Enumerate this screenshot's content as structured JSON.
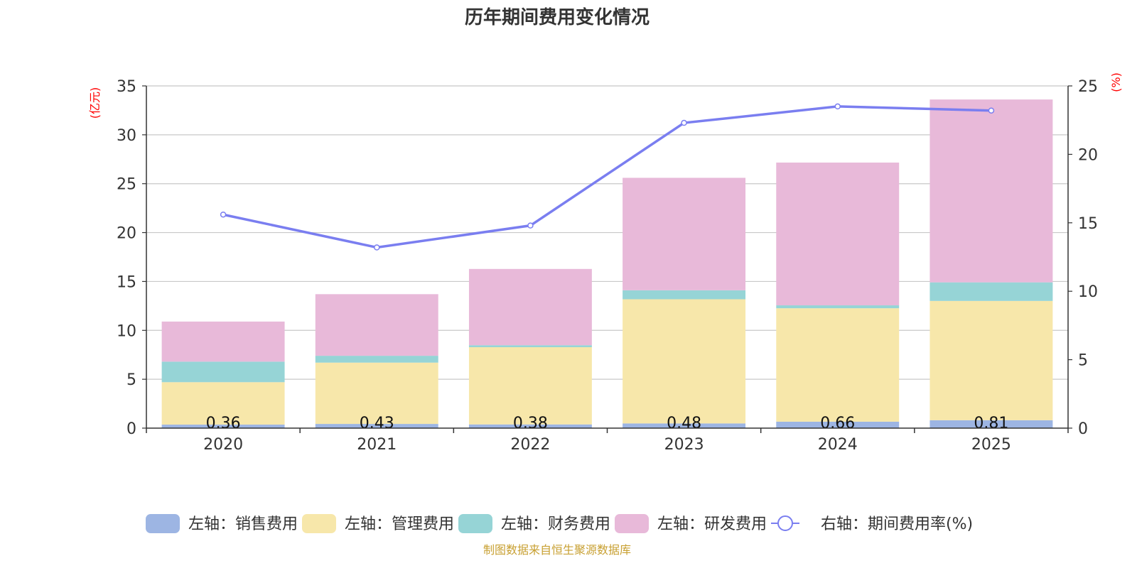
{
  "chart_data": {
    "type": "bar",
    "title": "历年期间费用变化情况",
    "left_axis_unit": "(亿元)",
    "right_axis_unit": "(%)",
    "categories": [
      "2020",
      "2021",
      "2022",
      "2023",
      "2024",
      "2025"
    ],
    "left_ylim": [
      0,
      35
    ],
    "left_ticks": [
      0,
      5,
      10,
      15,
      20,
      25,
      30,
      35
    ],
    "right_ylim": [
      0,
      25
    ],
    "right_ticks": [
      0,
      5,
      10,
      15,
      20,
      25
    ],
    "grid": true,
    "series": [
      {
        "name": "左轴：销售费用",
        "axis": "left",
        "type": "bar",
        "color": "#9db5e3",
        "values": [
          0.36,
          0.43,
          0.38,
          0.48,
          0.66,
          0.81
        ],
        "labels": [
          "0.36",
          "0.43",
          "0.38",
          "0.48",
          "0.66",
          "0.81"
        ]
      },
      {
        "name": "左轴：管理费用",
        "axis": "left",
        "type": "bar",
        "color": "#f7e7aa",
        "values": [
          4.34,
          6.27,
          7.9,
          12.7,
          11.6,
          12.2
        ]
      },
      {
        "name": "左轴：财务费用",
        "axis": "left",
        "type": "bar",
        "color": "#96d4d6",
        "values": [
          2.1,
          0.7,
          0.2,
          0.92,
          0.3,
          1.9
        ]
      },
      {
        "name": "左轴：研发费用",
        "axis": "left",
        "type": "bar",
        "color": "#e8b9d9",
        "values": [
          4.1,
          6.3,
          7.8,
          11.5,
          14.6,
          18.7
        ]
      },
      {
        "name": "右轴：期间费用率(%)",
        "axis": "right",
        "type": "line",
        "color": "#7a7ef0",
        "values": [
          15.6,
          13.2,
          14.8,
          22.3,
          23.5,
          23.2
        ]
      }
    ],
    "legend_position": "bottom-center",
    "source": "制图数据来自恒生聚源数据库"
  }
}
